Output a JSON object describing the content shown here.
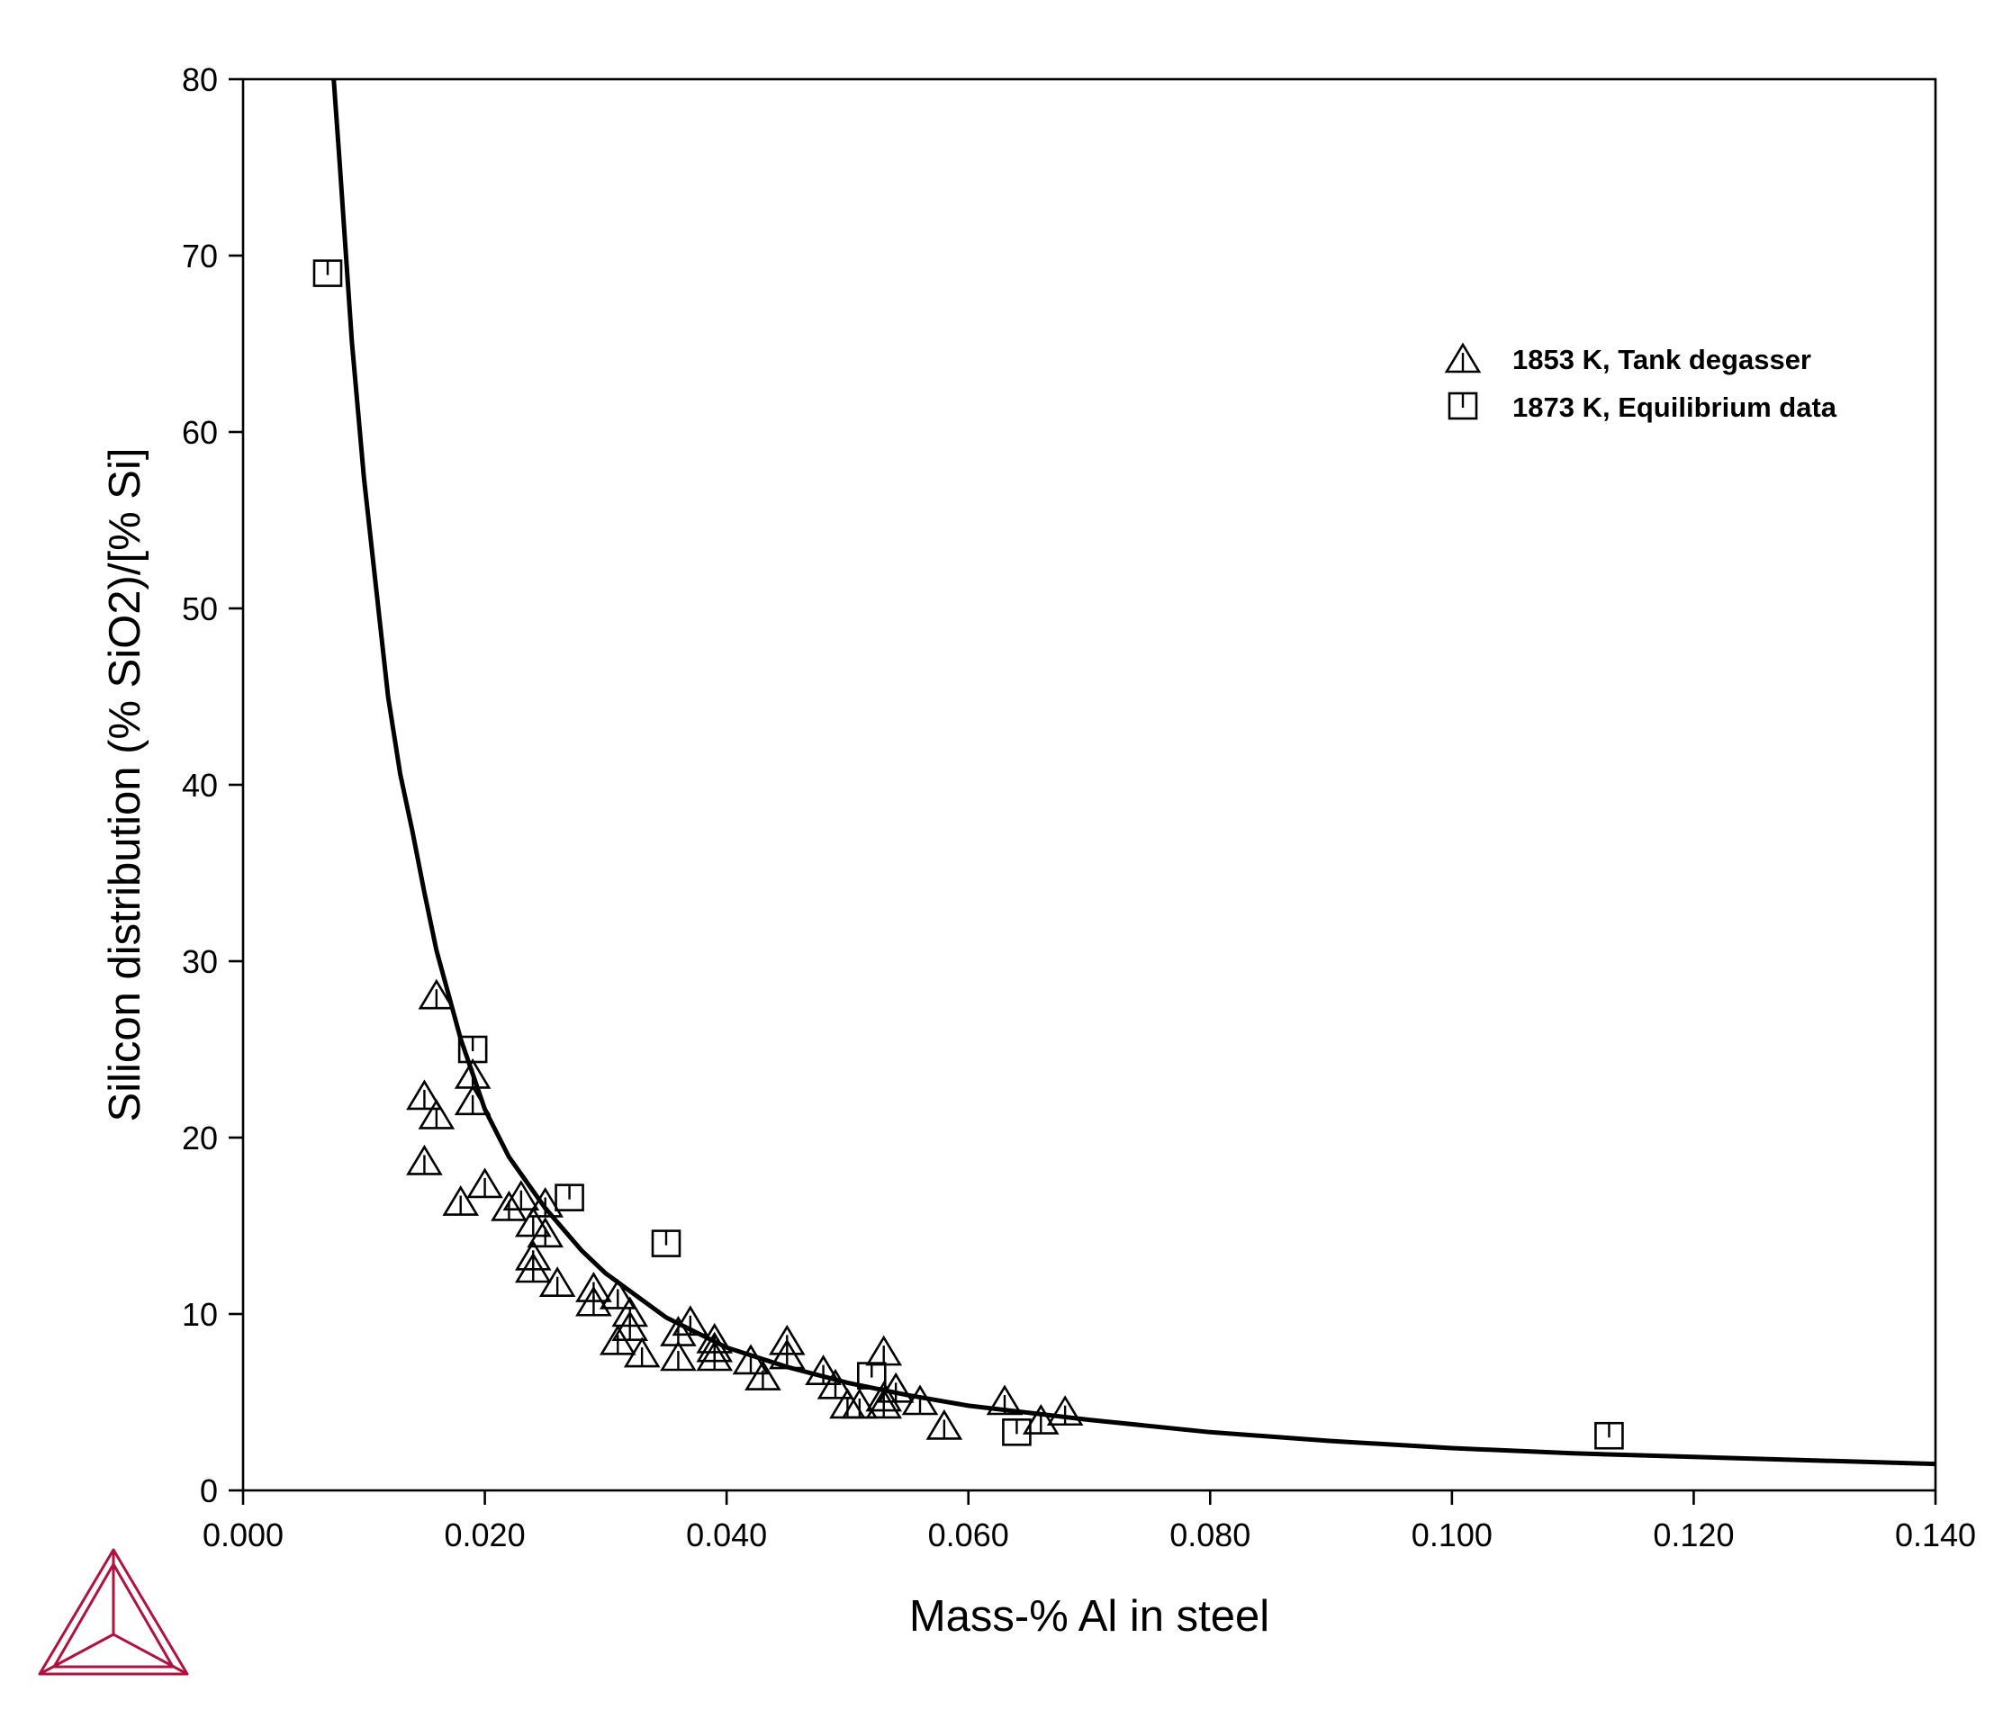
{
  "chart_data": {
    "type": "scatter",
    "xlabel": "Mass-% Al in steel",
    "ylabel": "Silicon distribution (% SiO2)/[% Si]",
    "xlim": [
      0,
      0.14
    ],
    "ylim": [
      0,
      80
    ],
    "x_ticks": [
      "0.000",
      "0.020",
      "0.040",
      "0.060",
      "0.080",
      "0.100",
      "0.120",
      "0.140"
    ],
    "y_ticks": [
      "0",
      "10",
      "20",
      "30",
      "40",
      "50",
      "60",
      "70",
      "80"
    ],
    "grid": false,
    "legend_position": "top-right",
    "series": [
      {
        "name": "1853 K, Tank degasser",
        "marker": "triangle",
        "points": [
          [
            0.016,
            28.0
          ],
          [
            0.019,
            23.5
          ],
          [
            0.015,
            22.3
          ],
          [
            0.019,
            22.0
          ],
          [
            0.016,
            21.2
          ],
          [
            0.015,
            18.6
          ],
          [
            0.018,
            16.3
          ],
          [
            0.02,
            17.3
          ],
          [
            0.022,
            16.0
          ],
          [
            0.023,
            16.6
          ],
          [
            0.025,
            16.2
          ],
          [
            0.024,
            15.1
          ],
          [
            0.025,
            14.5
          ],
          [
            0.024,
            13.2
          ],
          [
            0.024,
            12.5
          ],
          [
            0.026,
            11.7
          ],
          [
            0.029,
            11.4
          ],
          [
            0.029,
            10.6
          ],
          [
            0.031,
            11.0
          ],
          [
            0.032,
            10.0
          ],
          [
            0.032,
            9.2
          ],
          [
            0.031,
            8.4
          ],
          [
            0.033,
            7.7
          ],
          [
            0.037,
            9.5
          ],
          [
            0.036,
            8.9
          ],
          [
            0.039,
            8.5
          ],
          [
            0.039,
            8.0
          ],
          [
            0.036,
            7.5
          ],
          [
            0.039,
            7.5
          ],
          [
            0.042,
            7.3
          ],
          [
            0.043,
            6.4
          ],
          [
            0.045,
            8.4
          ],
          [
            0.045,
            7.6
          ],
          [
            0.048,
            6.7
          ],
          [
            0.049,
            5.9
          ],
          [
            0.05,
            4.8
          ],
          [
            0.051,
            4.8
          ],
          [
            0.053,
            7.8
          ],
          [
            0.053,
            5.2
          ],
          [
            0.053,
            4.8
          ],
          [
            0.054,
            5.7
          ],
          [
            0.056,
            5.0
          ],
          [
            0.058,
            3.6
          ],
          [
            0.063,
            5.0
          ],
          [
            0.066,
            3.9
          ],
          [
            0.068,
            4.4
          ]
        ]
      },
      {
        "name": "1873 K, Equilibrium data",
        "marker": "square",
        "points": [
          [
            0.007,
            69.0
          ],
          [
            0.019,
            25.0
          ],
          [
            0.027,
            16.6
          ],
          [
            0.035,
            14.0
          ],
          [
            0.052,
            6.5
          ],
          [
            0.064,
            3.3
          ],
          [
            0.113,
            3.1
          ]
        ]
      },
      {
        "name": "",
        "line": true,
        "points": [
          [
            0.0075,
            80.0
          ],
          [
            0.008,
            75.2
          ],
          [
            0.009,
            65.1
          ],
          [
            0.01,
            57.4
          ],
          [
            0.011,
            51.2
          ],
          [
            0.012,
            45.0
          ],
          [
            0.013,
            40.6
          ],
          [
            0.014,
            37.4
          ],
          [
            0.015,
            33.9
          ],
          [
            0.016,
            30.6
          ],
          [
            0.018,
            25.6
          ],
          [
            0.02,
            21.6
          ],
          [
            0.022,
            18.9
          ],
          [
            0.025,
            16.0
          ],
          [
            0.028,
            13.6
          ],
          [
            0.03,
            12.3
          ],
          [
            0.035,
            9.8
          ],
          [
            0.04,
            8.1
          ],
          [
            0.045,
            7.0
          ],
          [
            0.05,
            6.1
          ],
          [
            0.055,
            5.4
          ],
          [
            0.06,
            4.8
          ],
          [
            0.07,
            4.0
          ],
          [
            0.08,
            3.3
          ],
          [
            0.09,
            2.8
          ],
          [
            0.1,
            2.4
          ],
          [
            0.11,
            2.1
          ],
          [
            0.12,
            1.9
          ],
          [
            0.13,
            1.7
          ],
          [
            0.14,
            1.5
          ]
        ]
      }
    ]
  },
  "logo": {
    "name": "thermo-calc-logo-icon",
    "color": "#b0123f"
  }
}
